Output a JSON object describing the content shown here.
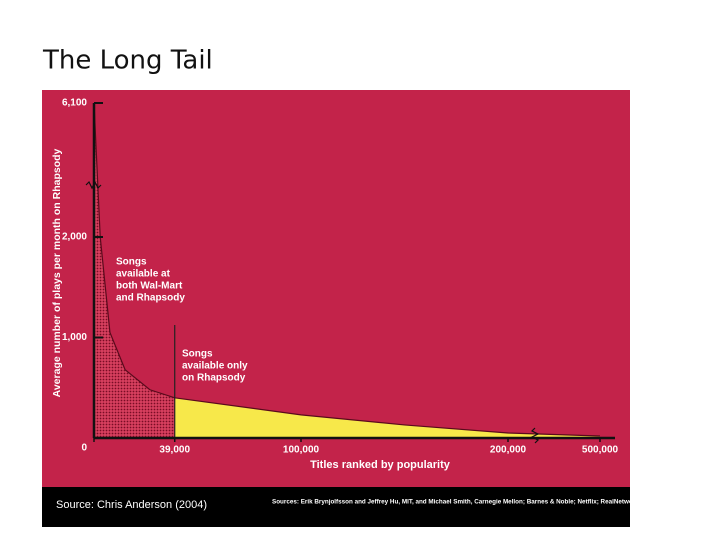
{
  "chart_data": {
    "type": "area",
    "title": "The Long Tail",
    "x_label": "Titles ranked by popularity",
    "y_label": "Average number of plays per month on Rhapsody",
    "x": [
      0,
      3000,
      7700,
      15000,
      27000,
      39000,
      100000,
      150000,
      200000,
      500000
    ],
    "values": [
      6100,
      2000,
      1050,
      680,
      480,
      400,
      230,
      130,
      50,
      20
    ],
    "split": 39000,
    "head_color": "#8e0f2c",
    "tail_color": "#f7e84a",
    "background": "#c3234a",
    "xlim": [
      0,
      500000
    ],
    "xticks": [
      0,
      {
        "value": 39000,
        "label": "39,000"
      },
      {
        "value": 100000,
        "label": "100,000"
      },
      {
        "value": 200000,
        "label": "200,000"
      },
      {
        "value": 500000,
        "label": "500,000"
      }
    ],
    "ylim": [
      0,
      6100
    ],
    "yticks": [
      0,
      {
        "value": 1000,
        "label": "1,000"
      },
      {
        "value": 2000,
        "label": "2,000"
      },
      {
        "value": 6100,
        "label": "6,100"
      }
    ],
    "annotations": [
      {
        "lines": [
          "Songs",
          "available at",
          "both Wal-Mart",
          "and Rhapsody"
        ]
      },
      {
        "lines": [
          "Songs",
          "available only",
          "on Rhapsody"
        ]
      }
    ],
    "source": "Source: Chris Anderson (2004)",
    "credits": "Sources: Erik Brynjolfsson and Jeffrey Hu, MIT, and Michael Smith, Carnegie Mellon; Barnes & Noble; Netflix; RealNetworks"
  }
}
